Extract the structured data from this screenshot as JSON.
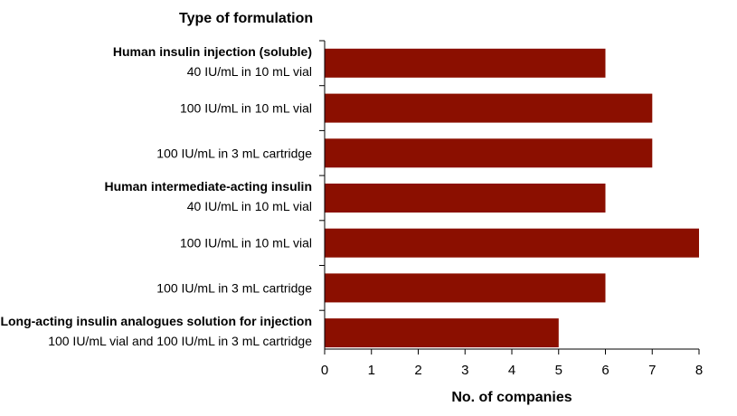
{
  "chart_data": {
    "type": "bar",
    "orientation": "horizontal",
    "ylabel": "Type of formulation",
    "xlabel": "No. of companies",
    "xlim": [
      0,
      8
    ],
    "xticks": [
      0,
      1,
      2,
      3,
      4,
      5,
      6,
      7,
      8
    ],
    "grid": false,
    "colors": {
      "bar": "#8b0f00"
    },
    "categories": [
      {
        "heading": "Human insulin injection (soluble)",
        "label": "40 IU/mL in 10 mL vial",
        "value": 6
      },
      {
        "heading": "",
        "label": "100 IU/mL in 10 mL vial",
        "value": 7
      },
      {
        "heading": "",
        "label": "100 IU/mL in 3 mL cartridge",
        "value": 7
      },
      {
        "heading": "Human intermediate-acting insulin",
        "label": "40 IU/mL in 10 mL vial",
        "value": 6
      },
      {
        "heading": "",
        "label": "100 IU/mL in 10 mL vial",
        "value": 8
      },
      {
        "heading": "",
        "label": "100 IU/mL in 3 mL cartridge",
        "value": 6
      },
      {
        "heading": "Long-acting insulin analogues solution for injection",
        "label": "100 IU/mL vial and 100 IU/mL in 3 mL cartridge",
        "value": 5
      }
    ]
  }
}
